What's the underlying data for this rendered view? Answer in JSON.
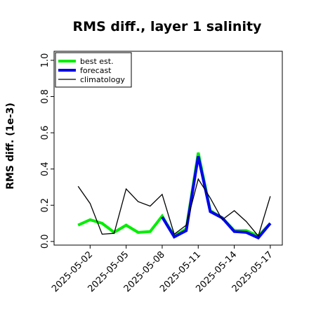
{
  "chart_data": {
    "type": "line",
    "title": "RMS diff., layer 1 salinity",
    "xlabel": "",
    "ylabel": "RMS diff. (1e-3)",
    "ylim": [
      -0.02,
      1.05
    ],
    "yticks": [
      "0.0",
      "0.2",
      "0.4",
      "0.6",
      "0.8",
      "1.0"
    ],
    "ytick_values": [
      0.0,
      0.2,
      0.4,
      0.6,
      0.8,
      1.0
    ],
    "x": [
      "2025-05-01",
      "2025-05-02",
      "2025-05-03",
      "2025-05-04",
      "2025-05-05",
      "2025-05-06",
      "2025-05-07",
      "2025-05-08",
      "2025-05-09",
      "2025-05-10",
      "2025-05-11",
      "2025-05-12",
      "2025-05-13",
      "2025-05-14",
      "2025-05-15",
      "2025-05-16",
      "2025-05-17"
    ],
    "xlim": [
      "2025-04-29",
      "2025-05-18"
    ],
    "xticks": [
      "2025-05-02",
      "2025-05-05",
      "2025-05-08",
      "2025-05-11",
      "2025-05-14",
      "2025-05-17"
    ],
    "xtick_colors": [
      "#000000",
      "#000000",
      "#228B22",
      "#000000",
      "#000000",
      "#000000"
    ],
    "grid": false,
    "legend": "top-left",
    "series": [
      {
        "name": "best est.",
        "color": "#00ee00",
        "values": [
          0.09,
          0.12,
          0.1,
          0.05,
          0.09,
          0.05,
          0.055,
          0.14,
          0.03,
          0.07,
          0.49,
          0.17,
          0.13,
          0.06,
          0.06,
          0.03,
          0.1
        ]
      },
      {
        "name": "forecast",
        "color": "#0000ee",
        "values": [
          null,
          null,
          null,
          null,
          null,
          null,
          null,
          0.135,
          0.025,
          0.06,
          0.47,
          0.165,
          0.13,
          0.055,
          0.05,
          0.02,
          0.1
        ]
      },
      {
        "name": "climatology",
        "color": "#000000",
        "values": [
          0.305,
          0.21,
          0.04,
          0.045,
          0.29,
          0.22,
          0.195,
          0.26,
          0.04,
          0.09,
          0.345,
          0.24,
          0.12,
          0.17,
          0.11,
          0.03,
          0.25
        ]
      }
    ]
  }
}
